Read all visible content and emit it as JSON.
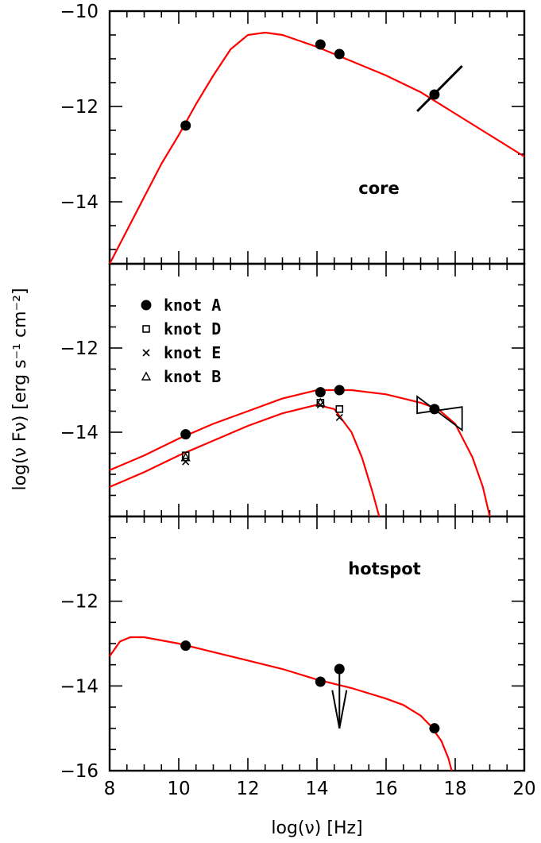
{
  "chart_data": [
    {
      "type": "line",
      "panel": "core",
      "annotation": "core",
      "xlim": [
        8,
        20
      ],
      "ylim": [
        -15.3,
        -10
      ],
      "yticks": [
        -10,
        -12,
        -14
      ],
      "grid": false,
      "model_lines": [
        {
          "x": [
            8,
            8.5,
            9,
            9.5,
            10,
            10.5,
            11,
            11.5,
            12,
            12.5,
            13,
            14,
            15,
            16,
            17,
            18,
            19,
            20
          ],
          "y": [
            -15.3,
            -14.6,
            -13.9,
            -13.2,
            -12.6,
            -11.95,
            -11.35,
            -10.8,
            -10.5,
            -10.45,
            -10.5,
            -10.75,
            -11.05,
            -11.35,
            -11.7,
            -12.15,
            -12.6,
            -13.05
          ]
        }
      ],
      "points": [
        {
          "x": 10.2,
          "y": -12.4,
          "marker": "filled-circle"
        },
        {
          "x": 14.1,
          "y": -10.7,
          "marker": "filled-circle"
        },
        {
          "x": 14.65,
          "y": -10.9,
          "marker": "filled-circle"
        },
        {
          "x": 17.4,
          "y": -11.75,
          "marker": "filled-circle"
        }
      ],
      "spectrum_segment": {
        "x": [
          16.9,
          18.2
        ],
        "y": [
          -12.1,
          -11.15
        ]
      }
    },
    {
      "type": "line",
      "panel": "knots",
      "xlim": [
        8,
        20
      ],
      "ylim": [
        -16,
        -10
      ],
      "yticks": [
        -12,
        -14
      ],
      "grid": false,
      "legend": {
        "position": "top-left",
        "entries": [
          {
            "label": "knot A",
            "marker": "filled-circle"
          },
          {
            "label": "knot D",
            "marker": "open-square"
          },
          {
            "label": "knot E",
            "marker": "cross"
          },
          {
            "label": "knot B",
            "marker": "open-triangle"
          }
        ]
      },
      "model_lines": [
        {
          "x": [
            8,
            9,
            10,
            11,
            12,
            13,
            14,
            15,
            16,
            17,
            17.5,
            18,
            18.5,
            18.8,
            19
          ],
          "y": [
            -14.9,
            -14.55,
            -14.15,
            -13.8,
            -13.5,
            -13.2,
            -13.0,
            -13.0,
            -13.1,
            -13.3,
            -13.45,
            -13.8,
            -14.6,
            -15.3,
            -16.0
          ]
        },
        {
          "x": [
            8,
            9,
            10,
            11,
            12,
            13,
            14,
            14.5,
            15,
            15.3,
            15.6,
            15.8
          ],
          "y": [
            -15.3,
            -14.95,
            -14.55,
            -14.2,
            -13.85,
            -13.55,
            -13.35,
            -13.45,
            -14.0,
            -14.6,
            -15.4,
            -16.0
          ]
        }
      ],
      "points": [
        {
          "x": 10.2,
          "y": -14.05,
          "marker": "filled-circle"
        },
        {
          "x": 14.1,
          "y": -13.05,
          "marker": "filled-circle"
        },
        {
          "x": 14.65,
          "y": -13.0,
          "marker": "filled-circle"
        },
        {
          "x": 17.4,
          "y": -13.45,
          "marker": "filled-circle"
        },
        {
          "x": 10.2,
          "y": -14.55,
          "marker": "open-square"
        },
        {
          "x": 14.1,
          "y": -13.3,
          "marker": "open-square"
        },
        {
          "x": 14.65,
          "y": -13.45,
          "marker": "open-square"
        },
        {
          "x": 10.2,
          "y": -14.7,
          "marker": "cross"
        },
        {
          "x": 14.1,
          "y": -13.35,
          "marker": "cross"
        },
        {
          "x": 14.65,
          "y": -13.65,
          "marker": "cross"
        },
        {
          "x": 10.2,
          "y": -14.6,
          "marker": "open-triangle"
        },
        {
          "x": 14.1,
          "y": -13.3,
          "marker": "open-triangle"
        }
      ],
      "bowtie": {
        "x": [
          16.9,
          18.2
        ],
        "y_top": [
          -13.15,
          -13.4
        ],
        "y_bottom": [
          -13.55,
          -13.95
        ],
        "pivot": [
          17.4,
          -13.45
        ]
      }
    },
    {
      "type": "line",
      "panel": "hotspot",
      "annotation": "hotspot",
      "xlim": [
        8,
        20
      ],
      "ylim": [
        -16,
        -10
      ],
      "yticks": [
        -12,
        -14,
        -16
      ],
      "xticks": [
        8,
        10,
        12,
        14,
        16,
        18,
        20
      ],
      "xlabel": "log(ν) [Hz]",
      "grid": false,
      "model_lines": [
        {
          "x": [
            8,
            8.3,
            8.6,
            9,
            10,
            11,
            12,
            13,
            14,
            15,
            16,
            16.5,
            17,
            17.3,
            17.6,
            17.8,
            17.9
          ],
          "y": [
            -13.3,
            -12.95,
            -12.85,
            -12.85,
            -13.0,
            -13.2,
            -13.4,
            -13.6,
            -13.85,
            -14.05,
            -14.3,
            -14.45,
            -14.7,
            -14.95,
            -15.3,
            -15.7,
            -16.0
          ]
        }
      ],
      "points": [
        {
          "x": 10.2,
          "y": -13.05,
          "marker": "filled-circle"
        },
        {
          "x": 14.1,
          "y": -13.9,
          "marker": "filled-circle"
        },
        {
          "x": 14.65,
          "y": -13.6,
          "marker": "filled-circle"
        },
        {
          "x": 17.4,
          "y": -15.0,
          "marker": "filled-circle"
        }
      ],
      "upper_limit": {
        "x": 14.65,
        "y_from": -13.6,
        "y_to": -15.0
      }
    }
  ],
  "shared_ylabel": "log(ν Fν) [erg s⁻¹ cm⁻²]"
}
